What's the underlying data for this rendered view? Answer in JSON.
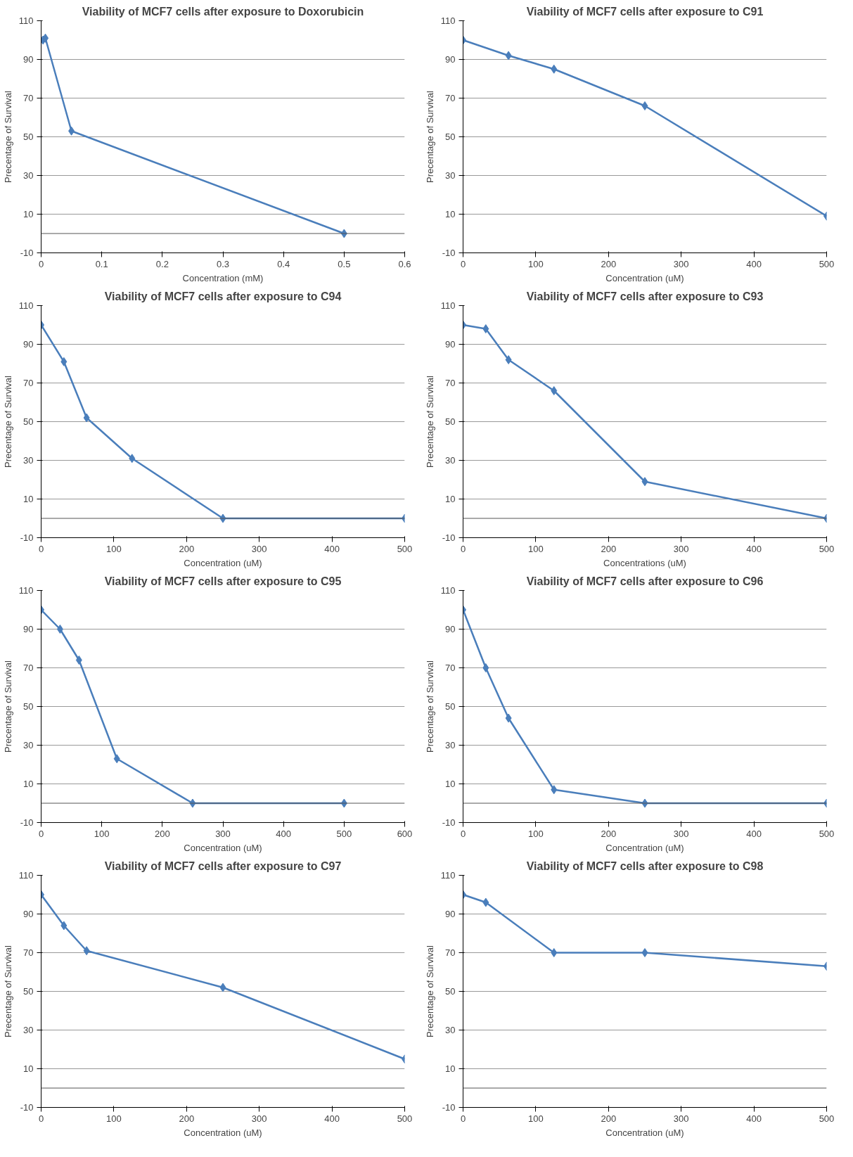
{
  "chart_data": [
    {
      "type": "line",
      "title": "Viability of MCF7 cells after exposure to Doxorubicin",
      "xlabel": "Concentration (mM)",
      "ylabel": "Precentage of Survival",
      "x": [
        0.003,
        0.007,
        0.05,
        0.5
      ],
      "series": [
        {
          "color": "#4a7ebb",
          "values": [
            100,
            101,
            53,
            0
          ]
        }
      ],
      "xlim": [
        0,
        0.6
      ],
      "xticks": [
        0,
        0.1,
        0.2,
        0.3,
        0.4,
        0.5,
        0.6
      ],
      "ylim": [
        -10,
        110
      ],
      "yticks": [
        -10,
        10,
        30,
        50,
        70,
        90,
        110
      ],
      "grid": "y",
      "marker": "diamond",
      "ref_lines": [
        {
          "axis": "y",
          "value": 0
        }
      ]
    },
    {
      "type": "line",
      "title": "Viability of MCF7 cells after exposure to C91",
      "xlabel": "Concentration (uM)",
      "ylabel": "Precentage of Survival",
      "x": [
        0,
        62.5,
        125,
        250,
        500
      ],
      "series": [
        {
          "color": "#4a7ebb",
          "values": [
            100,
            92,
            85,
            66,
            9
          ]
        }
      ],
      "xlim": [
        0,
        500
      ],
      "xticks": [
        0,
        100,
        200,
        300,
        400,
        500
      ],
      "ylim": [
        -10,
        110
      ],
      "yticks": [
        -10,
        10,
        30,
        50,
        70,
        90,
        110
      ],
      "grid": "y",
      "marker": "diamond"
    },
    {
      "type": "line",
      "title": "Viability of MCF7 cells after exposure to C94",
      "xlabel": "Concentration (uM)",
      "ylabel": "Precentage of Survival",
      "x": [
        0,
        31.25,
        62.5,
        125,
        250,
        500
      ],
      "series": [
        {
          "color": "#4a7ebb",
          "values": [
            100,
            81,
            52,
            31,
            0,
            0
          ]
        }
      ],
      "xlim": [
        0,
        500
      ],
      "xticks": [
        0,
        100,
        200,
        300,
        400,
        500
      ],
      "ylim": [
        -10,
        110
      ],
      "yticks": [
        -10,
        10,
        30,
        50,
        70,
        90,
        110
      ],
      "grid": "y",
      "marker": "diamond",
      "ref_lines": [
        {
          "axis": "y",
          "value": 0
        }
      ]
    },
    {
      "type": "line",
      "title": "Viability of MCF7 cells after exposure to C93",
      "xlabel": "Concentrations (uM)",
      "ylabel": "Precentage of Survival",
      "x": [
        0,
        31.25,
        62.5,
        125,
        250,
        500
      ],
      "series": [
        {
          "color": "#4a7ebb",
          "values": [
            100,
            98,
            82,
            66,
            19,
            0
          ]
        }
      ],
      "xlim": [
        0,
        500
      ],
      "xticks": [
        0,
        100,
        200,
        300,
        400,
        500
      ],
      "ylim": [
        -10,
        110
      ],
      "yticks": [
        -10,
        10,
        30,
        50,
        70,
        90,
        110
      ],
      "grid": "y",
      "marker": "diamond",
      "ref_lines": [
        {
          "axis": "y",
          "value": 0
        }
      ]
    },
    {
      "type": "line",
      "title": "Viability of MCF7 cells after exposure to C95",
      "xlabel": "Concentration (uM)",
      "ylabel": "Precentage of Survival",
      "x": [
        0,
        31.25,
        62.5,
        125,
        250,
        500
      ],
      "series": [
        {
          "color": "#4a7ebb",
          "values": [
            100,
            90,
            74,
            23,
            0,
            0
          ]
        }
      ],
      "xlim": [
        0,
        600
      ],
      "xticks": [
        0,
        100,
        200,
        300,
        400,
        500,
        600
      ],
      "ylim": [
        -10,
        110
      ],
      "yticks": [
        -10,
        10,
        30,
        50,
        70,
        90,
        110
      ],
      "grid": "y",
      "marker": "diamond",
      "ref_lines": [
        {
          "axis": "y",
          "value": 0
        }
      ]
    },
    {
      "type": "line",
      "title": "Viability of MCF7 cells after exposure to C96",
      "xlabel": "Concentration (uM)",
      "ylabel": "Precentage of Survival",
      "x": [
        0,
        31.25,
        62.5,
        125,
        250,
        500
      ],
      "series": [
        {
          "color": "#4a7ebb",
          "values": [
            100,
            70,
            44,
            7,
            0,
            0
          ]
        }
      ],
      "xlim": [
        0,
        500
      ],
      "xticks": [
        0,
        100,
        200,
        300,
        400,
        500
      ],
      "ylim": [
        -10,
        110
      ],
      "yticks": [
        -10,
        10,
        30,
        50,
        70,
        90,
        110
      ],
      "grid": "y",
      "marker": "diamond",
      "ref_lines": [
        {
          "axis": "y",
          "value": 0
        }
      ]
    },
    {
      "type": "line",
      "title": "Viability of MCF7 cells after exposure to C97",
      "xlabel": "Concentration (uM)",
      "ylabel": "Precentage of Survival",
      "x": [
        0,
        31.25,
        62.5,
        250,
        500
      ],
      "series": [
        {
          "color": "#4a7ebb",
          "values": [
            100,
            84,
            71,
            52,
            15
          ]
        }
      ],
      "xlim": [
        0,
        500
      ],
      "xticks": [
        0,
        100,
        200,
        300,
        400,
        500
      ],
      "ylim": [
        -10,
        110
      ],
      "yticks": [
        -10,
        10,
        30,
        50,
        70,
        90,
        110
      ],
      "grid": "y",
      "marker": "diamond",
      "ref_lines": [
        {
          "axis": "y",
          "value": 0
        }
      ]
    },
    {
      "type": "line",
      "title": "Viability of MCF7 cells after exposure to C98",
      "xlabel": "Concentration (uM)",
      "ylabel": "Precentage of Survival",
      "x": [
        0,
        31.25,
        125,
        250,
        500
      ],
      "series": [
        {
          "color": "#4a7ebb",
          "values": [
            100,
            96,
            70,
            70,
            63
          ]
        }
      ],
      "xlim": [
        0,
        500
      ],
      "xticks": [
        0,
        100,
        200,
        300,
        400,
        500
      ],
      "ylim": [
        -10,
        110
      ],
      "yticks": [
        -10,
        10,
        30,
        50,
        70,
        90,
        110
      ],
      "grid": "y",
      "marker": "diamond",
      "ref_lines": [
        {
          "axis": "y",
          "value": 0
        }
      ]
    }
  ]
}
